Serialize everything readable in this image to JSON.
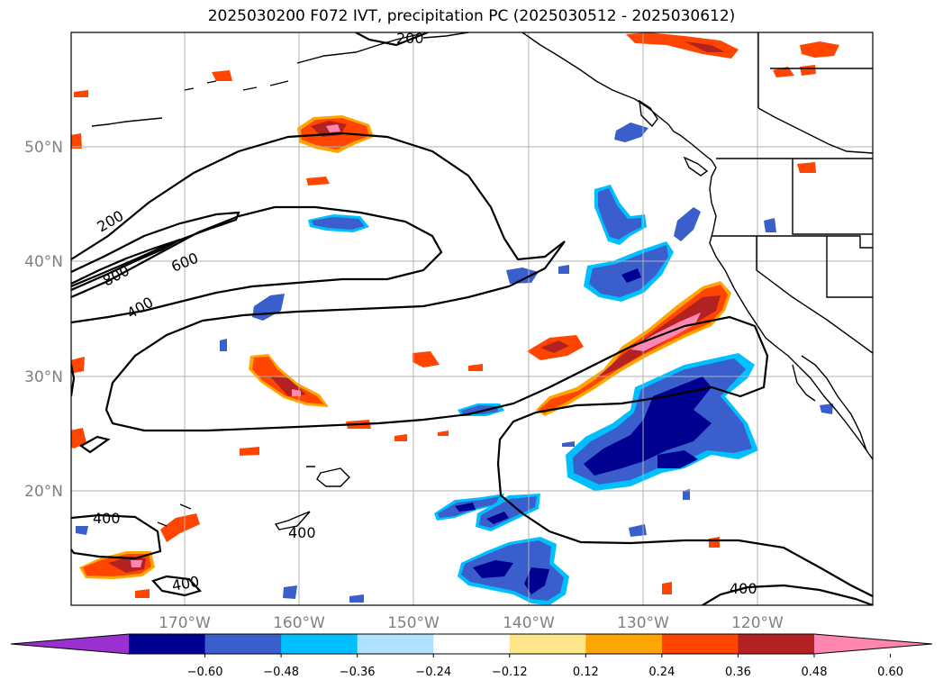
{
  "title": "2025030200 F072 IVT, precipitation PC (2025030512 - 2025030612)",
  "lat_labels": [
    "50°N",
    "40°N",
    "30°N",
    "20°N"
  ],
  "lon_labels": [
    "170°W",
    "160°W",
    "150°W",
    "140°W",
    "130°W",
    "120°W"
  ],
  "contour_labels": [
    "200",
    "800",
    "600",
    "400",
    "200",
    "400",
    "400",
    "400",
    "400"
  ],
  "colorbar": {
    "ticks": [
      "−0.60",
      "−0.48",
      "−0.36",
      "−0.24",
      "−0.12",
      "0.12",
      "0.24",
      "0.36",
      "0.48",
      "0.60"
    ],
    "colors": [
      "#9b30d0",
      "#000090",
      "#3a5fcd",
      "#00bfff",
      "#b0e2ff",
      "#ffffff",
      "#ffe68a",
      "#ffa500",
      "#ff4500",
      "#b22222",
      "#ff86b0"
    ]
  },
  "colors": {
    "strong_negative": "#000090",
    "negative": "#3a5fcd",
    "weak_negative": "#00bfff",
    "faint_negative": "#b0e2ff",
    "faint_positive": "#ffe68a",
    "weak_positive": "#ffa500",
    "positive": "#ff4500",
    "strong_positive": "#b22222",
    "peak_positive": "#ff86b0",
    "contour": "#000000",
    "grid": "#b0b0b0"
  }
}
